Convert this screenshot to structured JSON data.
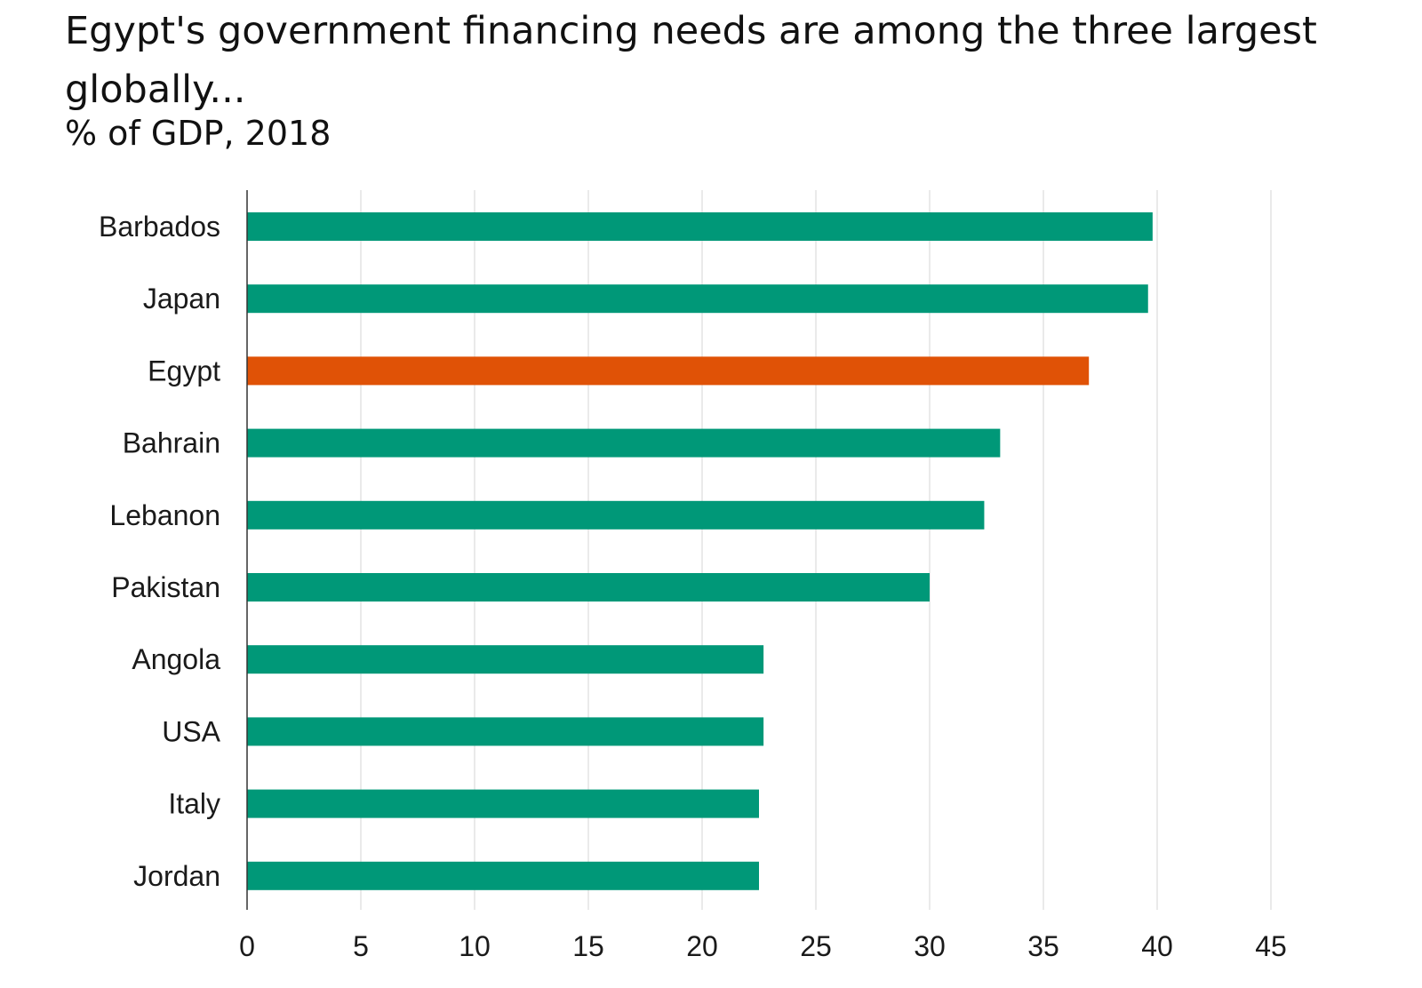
{
  "title": "Egypt's government financing needs are among the three largest globally...",
  "subtitle": "% of GDP, 2018",
  "colors": {
    "default": "#009878",
    "highlight": "#E05206",
    "grid": "#e3e3e3",
    "axis": "#333333"
  },
  "chart_data": {
    "type": "bar",
    "orientation": "horizontal",
    "title": "Egypt's government financing needs are among the three largest globally...",
    "subtitle": "% of GDP, 2018",
    "categories": [
      "Barbados",
      "Japan",
      "Egypt",
      "Bahrain",
      "Lebanon",
      "Pakistan",
      "Angola",
      "USA",
      "Italy",
      "Jordan"
    ],
    "values": [
      39.8,
      39.6,
      37.0,
      33.1,
      32.4,
      30.0,
      22.7,
      22.7,
      22.5,
      22.5
    ],
    "highlight": "Egypt",
    "xlabel": "",
    "ylabel": "",
    "xlim": [
      0,
      45
    ],
    "xticks": [
      0,
      5,
      10,
      15,
      20,
      25,
      30,
      35,
      40,
      45
    ],
    "grid": "vertical"
  }
}
